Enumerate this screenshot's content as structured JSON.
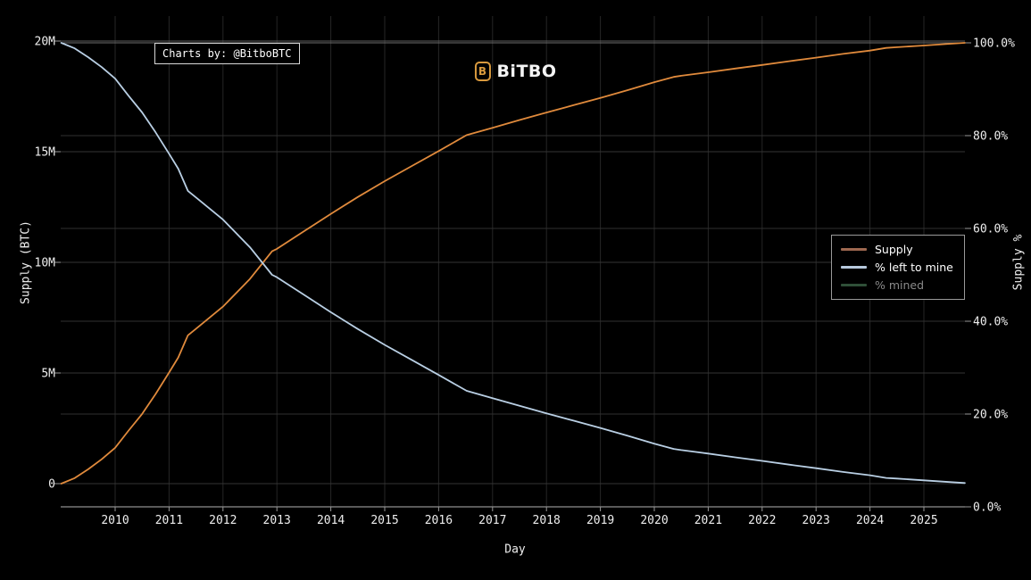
{
  "page": {
    "background": "#000000"
  },
  "watermark": {
    "text": "Charts by: @BitboBTC"
  },
  "logo": {
    "text": "BiTBO",
    "icon_letter": "B",
    "color": "#d99a3e"
  },
  "legend": {
    "items": [
      {
        "label": "Supply",
        "swatch_color": "#9e6850",
        "active": true
      },
      {
        "label": "% left to mine",
        "swatch_color": "#b7c9dd",
        "active": true
      },
      {
        "label": "% mined",
        "swatch_color": "#2f5038",
        "active": false
      }
    ]
  },
  "chart_data": {
    "type": "line",
    "title": "",
    "xlabel": "Day",
    "grid": true,
    "legend_position": "center-right",
    "x_axis": {
      "label": "Day",
      "range_years": [
        2009.0,
        2025.76
      ],
      "ticks": [
        {
          "year": 2010,
          "label": "2010"
        },
        {
          "year": 2011,
          "label": "2011"
        },
        {
          "year": 2012,
          "label": "2012"
        },
        {
          "year": 2013,
          "label": "2013"
        },
        {
          "year": 2014,
          "label": "2014"
        },
        {
          "year": 2015,
          "label": "2015"
        },
        {
          "year": 2016,
          "label": "2016"
        },
        {
          "year": 2017,
          "label": "2017"
        },
        {
          "year": 2018,
          "label": "2018"
        },
        {
          "year": 2019,
          "label": "2019"
        },
        {
          "year": 2020,
          "label": "2020"
        },
        {
          "year": 2021,
          "label": "2021"
        },
        {
          "year": 2022,
          "label": "2022"
        },
        {
          "year": 2023,
          "label": "2023"
        },
        {
          "year": 2024,
          "label": "2024"
        },
        {
          "year": 2025,
          "label": "2025"
        }
      ]
    },
    "left_axis": {
      "label": "Supply (BTC)",
      "range_million_btc": [
        0,
        20
      ],
      "ticks": [
        {
          "value_m": 0,
          "label": "0"
        },
        {
          "value_m": 5,
          "label": "5M"
        },
        {
          "value_m": 10,
          "label": "10M"
        },
        {
          "value_m": 15,
          "label": "15M"
        },
        {
          "value_m": 20,
          "label": "20M"
        }
      ]
    },
    "right_axis": {
      "label": "Supply %",
      "range_pct": [
        0,
        100
      ],
      "ticks": [
        {
          "value_pct": 0,
          "label": "0.0%"
        },
        {
          "value_pct": 20,
          "label": "20.0%"
        },
        {
          "value_pct": 40,
          "label": "40.0%"
        },
        {
          "value_pct": 60,
          "label": "60.0%"
        },
        {
          "value_pct": 80,
          "label": "80.0%"
        },
        {
          "value_pct": 100,
          "label": "100.0%"
        }
      ]
    },
    "x_years_shared": [
      2009,
      2009.25,
      2009.5,
      2009.75,
      2010,
      2010.25,
      2010.5,
      2010.75,
      2011,
      2011.17,
      2011.35,
      2011.5,
      2012,
      2012.5,
      2012.91,
      2013,
      2013.5,
      2014,
      2014.5,
      2015,
      2015.5,
      2016,
      2016.52,
      2017,
      2017.5,
      2018,
      2018.5,
      2019,
      2019.5,
      2020,
      2020.36,
      2020.5,
      2021,
      2021.5,
      2022,
      2022.5,
      2023,
      2023.5,
      2024,
      2024.3,
      2024.5,
      2025,
      2025.5,
      2025.76
    ],
    "series": [
      {
        "name": "Supply",
        "axis": "left",
        "unit": "million BTC",
        "color": "#e08a3c",
        "visible": true,
        "values": [
          0,
          0.25,
          0.65,
          1.1,
          1.62,
          2.4,
          3.15,
          4.05,
          5.02,
          5.7,
          6.7,
          7.0,
          8.0,
          9.25,
          10.5,
          10.61,
          11.4,
          12.19,
          12.95,
          13.67,
          14.35,
          15.03,
          15.75,
          16.08,
          16.43,
          16.77,
          17.1,
          17.43,
          17.78,
          18.14,
          18.38,
          18.43,
          18.59,
          18.76,
          18.92,
          19.09,
          19.25,
          19.42,
          19.57,
          19.69,
          19.72,
          19.8,
          19.88,
          19.92
        ]
      },
      {
        "name": "% left to mine",
        "axis": "right",
        "unit": "percent",
        "color": "#b9cfe4",
        "visible": true,
        "values": [
          100,
          98.81,
          96.9,
          94.76,
          92.29,
          88.57,
          85.0,
          80.71,
          76.1,
          72.86,
          68.1,
          66.67,
          61.9,
          55.95,
          50.0,
          49.48,
          45.71,
          41.95,
          38.33,
          34.9,
          31.67,
          28.43,
          25.0,
          23.43,
          21.76,
          20.14,
          18.57,
          17.0,
          15.33,
          13.62,
          12.48,
          12.24,
          11.48,
          10.67,
          9.9,
          9.1,
          8.33,
          7.52,
          6.81,
          6.24,
          6.1,
          5.71,
          5.33,
          5.14
        ]
      },
      {
        "name": "% mined",
        "axis": "right",
        "unit": "percent",
        "color": "#3f6b47",
        "visible": false,
        "values": []
      }
    ]
  }
}
